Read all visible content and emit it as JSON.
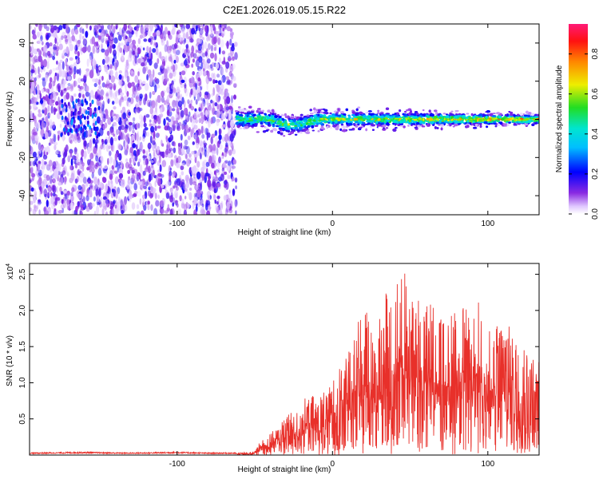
{
  "figure": {
    "title": "C2E1.2026.019.05.15.R22"
  },
  "chart_data": [
    {
      "type": "heatmap",
      "title": "C2E1.2026.019.05.15.R22",
      "xlabel": "Height of straight line (km)",
      "ylabel": "Frequency (Hz)",
      "xlim": [
        -195,
        133
      ],
      "ylim": [
        -50,
        50
      ],
      "xticks": [
        -100,
        0,
        100
      ],
      "xtick_labels": [
        "-100",
        "0",
        "100"
      ],
      "yticks": [
        -40,
        -20,
        0,
        20,
        40
      ],
      "ytick_labels": [
        "-40",
        "-20",
        "0",
        "20",
        "40"
      ],
      "colorbar": {
        "label": "Normalized spectral amplitude",
        "range": [
          0,
          0.95
        ],
        "ticks": [
          0.0,
          0.2,
          0.4,
          0.6,
          0.8
        ],
        "tick_labels": [
          "0.0",
          "0.2",
          "0.4",
          "0.6",
          "0.8"
        ],
        "colormap": "rainbow (magenta/white low → violet → blue → cyan → green → yellow → orange → red → pink high)"
      },
      "features": {
        "noise_region_x": [
          -195,
          -62
        ],
        "noise_amplitude": [
          0.0,
          0.1
        ],
        "echo_band_center_hz": 0,
        "echo_band_halfwidth_hz": [
          4,
          2
        ],
        "echo_band_x": [
          -62,
          133
        ],
        "echo_band_peak_amplitude": 0.9,
        "weak_feature_x": [
          -175,
          -150
        ],
        "weak_feature_frequency_hz": [
          -10,
          10
        ]
      }
    },
    {
      "type": "line",
      "xlabel": "Height of straight line (km)",
      "ylabel": "SNR (10 * v/v)",
      "y_scale_label": "(x10^4)",
      "y_scale_base": "x10",
      "y_scale_exponent": "4",
      "xlim": [
        -195,
        133
      ],
      "ylim": [
        0,
        2.65
      ],
      "xticks": [
        -100,
        0,
        100
      ],
      "xtick_labels": [
        "-100",
        "0",
        "100"
      ],
      "yticks": [
        0.5,
        1.0,
        1.5,
        2.0,
        2.5
      ],
      "ytick_labels": [
        "0.5",
        "1.0",
        "1.5",
        "2.0",
        "2.5"
      ],
      "color": "#e8302a",
      "series": [
        {
          "name": "SNR",
          "x": [
            -195,
            -160,
            -130,
            -100,
            -80,
            -62,
            -50,
            -45,
            -40,
            -35,
            -30,
            -25,
            -20,
            -15,
            -10,
            -5,
            0,
            5,
            10,
            15,
            20,
            25,
            30,
            35,
            40,
            45,
            50,
            55,
            60,
            65,
            70,
            75,
            80,
            85,
            90,
            95,
            100,
            105,
            110,
            115,
            120,
            125,
            130,
            133
          ],
          "values": [
            0.03,
            0.04,
            0.03,
            0.04,
            0.03,
            0.03,
            0.05,
            0.25,
            0.3,
            0.4,
            0.55,
            0.6,
            0.75,
            0.85,
            0.8,
            0.9,
            1.05,
            1.3,
            1.6,
            1.75,
            2.15,
            1.8,
            2.0,
            2.35,
            2.4,
            2.62,
            2.3,
            2.35,
            2.3,
            2.1,
            1.9,
            1.85,
            2.25,
            2.05,
            1.9,
            2.25,
            1.7,
            1.8,
            1.9,
            2.0,
            1.7,
            1.55,
            1.5,
            1.3
          ]
        }
      ]
    }
  ]
}
